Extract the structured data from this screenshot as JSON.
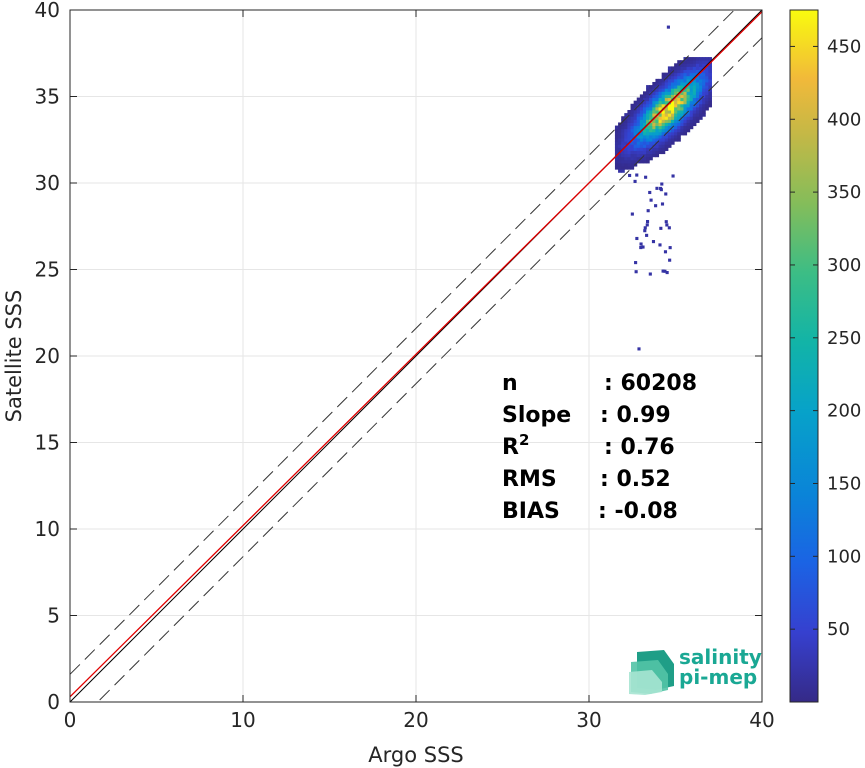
{
  "chart_data": {
    "type": "heatmap",
    "xlabel": "Argo SSS",
    "ylabel": "Satellite SSS",
    "xlim": [
      0,
      40
    ],
    "ylim": [
      0,
      40
    ],
    "xticks": [
      0,
      10,
      20,
      30,
      40
    ],
    "yticks": [
      0,
      5,
      10,
      15,
      20,
      25,
      30,
      35,
      40
    ],
    "grid": true,
    "colormap": "parula",
    "colorbar": {
      "range": [
        0,
        475
      ],
      "ticks": [
        50,
        100,
        150,
        200,
        250,
        300,
        350,
        400,
        450
      ]
    },
    "density_cluster": {
      "core_center": [
        34.5,
        34.2
      ],
      "x_range": [
        31.5,
        37.0
      ],
      "y_range": [
        20.3,
        39.0
      ],
      "peak_count": 470
    },
    "reference_lines": [
      {
        "name": "1:1",
        "slope": 1,
        "intercept": 0,
        "color": "#000000",
        "style": "solid"
      },
      {
        "name": "fit",
        "slope": 0.99,
        "intercept": 0.3,
        "color": "#e00000",
        "style": "solid"
      },
      {
        "name": "upper",
        "slope": 1,
        "intercept": 1.6,
        "color": "#333333",
        "style": "dashed"
      },
      {
        "name": "lower",
        "slope": 1,
        "intercept": -1.6,
        "color": "#333333",
        "style": "dashed"
      }
    ],
    "stats": [
      {
        "label": "n",
        "value": ": 60208"
      },
      {
        "label": "Slope",
        "value": ": 0.99"
      },
      {
        "label": "R",
        "sup": "2",
        "value": ": 0.76"
      },
      {
        "label": "RMS",
        "value": ": 0.52"
      },
      {
        "label": "BIAS",
        "value": ": -0.08"
      }
    ]
  },
  "logo": {
    "line1": "salinity",
    "line2": "pi-mep"
  }
}
